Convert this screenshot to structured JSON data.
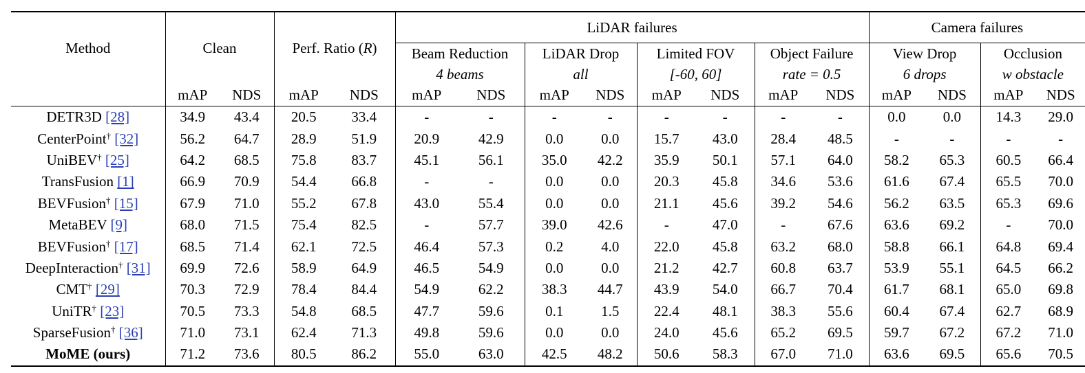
{
  "header": {
    "method": "Method",
    "clean": "Clean",
    "perf_ratio": "Perf. Ratio (",
    "perf_ratio_sym": "R",
    "perf_ratio_close": ")",
    "lidar_failures": "LiDAR failures",
    "camera_failures": "Camera failures",
    "groups": [
      {
        "name": "Beam Reduction",
        "setting": "4 beams"
      },
      {
        "name": "LiDAR Drop",
        "setting": "all"
      },
      {
        "name": "Limited FOV",
        "setting": "[-60, 60]"
      },
      {
        "name": "Object Failure",
        "setting": "rate = 0.5"
      },
      {
        "name": "View Drop",
        "setting": "6 drops"
      },
      {
        "name": "Occlusion",
        "setting": "w obstacle"
      }
    ],
    "metric_a": "mAP",
    "metric_b": "NDS"
  },
  "rows": [
    {
      "name": "DETR3D",
      "dagger": "",
      "ref": "[28]",
      "bold": false,
      "values": [
        "34.9",
        "43.4",
        "20.5",
        "33.4",
        "-",
        "-",
        "-",
        "-",
        "-",
        "-",
        "-",
        "-",
        "0.0",
        "0.0",
        "14.3",
        "29.0"
      ],
      "bold_cells": []
    },
    {
      "name": "CenterPoint",
      "dagger": "†",
      "ref": "[32]",
      "bold": false,
      "values": [
        "56.2",
        "64.7",
        "28.9",
        "51.9",
        "20.9",
        "42.9",
        "0.0",
        "0.0",
        "15.7",
        "43.0",
        "28.4",
        "48.5",
        "-",
        "-",
        "-",
        "-"
      ],
      "bold_cells": []
    },
    {
      "name": "UniBEV",
      "dagger": "†",
      "ref": "[25]",
      "bold": false,
      "values": [
        "64.2",
        "68.5",
        "75.8",
        "83.7",
        "45.1",
        "56.1",
        "35.0",
        "42.2",
        "35.9",
        "50.1",
        "57.1",
        "64.0",
        "58.2",
        "65.3",
        "60.5",
        "66.4"
      ],
      "bold_cells": []
    },
    {
      "name": "TransFusion",
      "dagger": "",
      "ref": "[1]",
      "bold": false,
      "values": [
        "66.9",
        "70.9",
        "54.4",
        "66.8",
        "-",
        "-",
        "0.0",
        "0.0",
        "20.3",
        "45.8",
        "34.6",
        "53.6",
        "61.6",
        "67.4",
        "65.5",
        "70.0"
      ],
      "bold_cells": []
    },
    {
      "name": "BEVFusion",
      "dagger": "†",
      "ref": "[15]",
      "bold": false,
      "values": [
        "67.9",
        "71.0",
        "55.2",
        "67.8",
        "43.0",
        "55.4",
        "0.0",
        "0.0",
        "21.1",
        "45.6",
        "39.2",
        "54.6",
        "56.2",
        "63.5",
        "65.3",
        "69.6"
      ],
      "bold_cells": []
    },
    {
      "name": "MetaBEV",
      "dagger": "",
      "ref": "[9]",
      "bold": false,
      "values": [
        "68.0",
        "71.5",
        "75.4",
        "82.5",
        "-",
        "57.7",
        "39.0",
        "42.6",
        "-",
        "47.0",
        "-",
        "67.6",
        "63.6",
        "69.2",
        "-",
        "70.0"
      ],
      "bold_cells": []
    },
    {
      "name": "BEVFusion",
      "dagger": "†",
      "ref": "[17]",
      "bold": false,
      "values": [
        "68.5",
        "71.4",
        "62.1",
        "72.5",
        "46.4",
        "57.3",
        "0.2",
        "4.0",
        "22.0",
        "45.8",
        "63.2",
        "68.0",
        "58.8",
        "66.1",
        "64.8",
        "69.4"
      ],
      "bold_cells": []
    },
    {
      "name": "DeepInteraction",
      "dagger": "†",
      "ref": "[31]",
      "bold": false,
      "values": [
        "69.9",
        "72.6",
        "58.9",
        "64.9",
        "46.5",
        "54.9",
        "0.0",
        "0.0",
        "21.2",
        "42.7",
        "60.8",
        "63.7",
        "53.9",
        "55.1",
        "64.5",
        "66.2"
      ],
      "bold_cells": []
    },
    {
      "name": "CMT",
      "dagger": "†",
      "ref": "[29]",
      "bold": false,
      "values": [
        "70.3",
        "72.9",
        "78.4",
        "84.4",
        "54.9",
        "62.2",
        "38.3",
        "44.7",
        "43.9",
        "54.0",
        "66.7",
        "70.4",
        "61.7",
        "68.1",
        "65.0",
        "69.8"
      ],
      "bold_cells": []
    },
    {
      "name": "UniTR",
      "dagger": "†",
      "ref": "[23]",
      "bold": false,
      "values": [
        "70.5",
        "73.3",
        "54.8",
        "68.5",
        "47.7",
        "59.6",
        "0.1",
        "1.5",
        "22.4",
        "48.1",
        "38.3",
        "55.6",
        "60.4",
        "67.4",
        "62.7",
        "68.9"
      ],
      "bold_cells": []
    },
    {
      "name": "SparseFusion",
      "dagger": "†",
      "ref": "[36]",
      "bold": false,
      "values": [
        "71.0",
        "73.1",
        "62.4",
        "71.3",
        "49.8",
        "59.6",
        "0.0",
        "0.0",
        "24.0",
        "45.6",
        "65.2",
        "69.5",
        "59.7",
        "67.2",
        "67.2",
        "71.0"
      ],
      "bold_cells": [
        14,
        15
      ]
    },
    {
      "name": "MoME (ours)",
      "dagger": "",
      "ref": "",
      "bold": true,
      "values": [
        "71.2",
        "73.6",
        "80.5",
        "86.2",
        "55.0",
        "63.0",
        "42.5",
        "48.2",
        "50.6",
        "58.3",
        "67.0",
        "71.0",
        "63.6",
        "69.5",
        "65.6",
        "70.5"
      ],
      "bold_cells": [
        0,
        1,
        2,
        3,
        4,
        5,
        6,
        7,
        8,
        9,
        10,
        11,
        12,
        13
      ]
    }
  ]
}
